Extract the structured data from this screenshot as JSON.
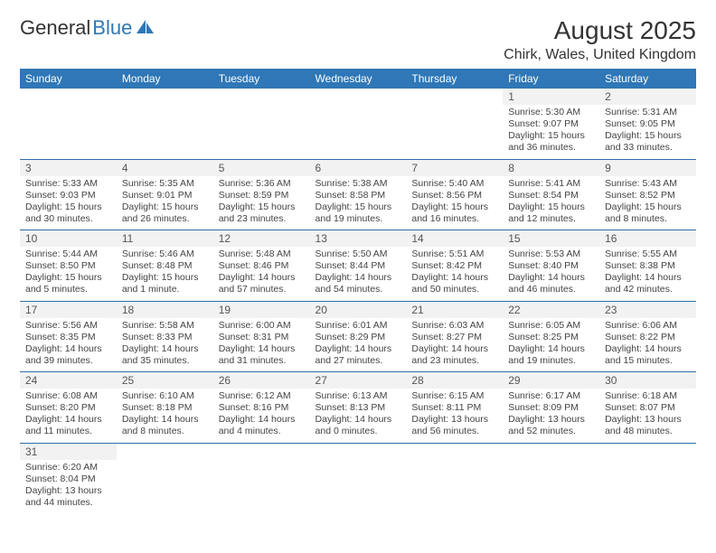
{
  "brand": {
    "part1": "General",
    "part2": "Blue"
  },
  "title": "August 2025",
  "location": "Chirk, Wales, United Kingdom",
  "header_bg": "#2f77b6",
  "days": [
    "Sunday",
    "Monday",
    "Tuesday",
    "Wednesday",
    "Thursday",
    "Friday",
    "Saturday"
  ],
  "cells": [
    {
      "n": "",
      "sr": "",
      "ss": "",
      "dl": ""
    },
    {
      "n": "",
      "sr": "",
      "ss": "",
      "dl": ""
    },
    {
      "n": "",
      "sr": "",
      "ss": "",
      "dl": ""
    },
    {
      "n": "",
      "sr": "",
      "ss": "",
      "dl": ""
    },
    {
      "n": "",
      "sr": "",
      "ss": "",
      "dl": ""
    },
    {
      "n": "1",
      "sr": "Sunrise: 5:30 AM",
      "ss": "Sunset: 9:07 PM",
      "dl": "Daylight: 15 hours and 36 minutes."
    },
    {
      "n": "2",
      "sr": "Sunrise: 5:31 AM",
      "ss": "Sunset: 9:05 PM",
      "dl": "Daylight: 15 hours and 33 minutes."
    },
    {
      "n": "3",
      "sr": "Sunrise: 5:33 AM",
      "ss": "Sunset: 9:03 PM",
      "dl": "Daylight: 15 hours and 30 minutes."
    },
    {
      "n": "4",
      "sr": "Sunrise: 5:35 AM",
      "ss": "Sunset: 9:01 PM",
      "dl": "Daylight: 15 hours and 26 minutes."
    },
    {
      "n": "5",
      "sr": "Sunrise: 5:36 AM",
      "ss": "Sunset: 8:59 PM",
      "dl": "Daylight: 15 hours and 23 minutes."
    },
    {
      "n": "6",
      "sr": "Sunrise: 5:38 AM",
      "ss": "Sunset: 8:58 PM",
      "dl": "Daylight: 15 hours and 19 minutes."
    },
    {
      "n": "7",
      "sr": "Sunrise: 5:40 AM",
      "ss": "Sunset: 8:56 PM",
      "dl": "Daylight: 15 hours and 16 minutes."
    },
    {
      "n": "8",
      "sr": "Sunrise: 5:41 AM",
      "ss": "Sunset: 8:54 PM",
      "dl": "Daylight: 15 hours and 12 minutes."
    },
    {
      "n": "9",
      "sr": "Sunrise: 5:43 AM",
      "ss": "Sunset: 8:52 PM",
      "dl": "Daylight: 15 hours and 8 minutes."
    },
    {
      "n": "10",
      "sr": "Sunrise: 5:44 AM",
      "ss": "Sunset: 8:50 PM",
      "dl": "Daylight: 15 hours and 5 minutes."
    },
    {
      "n": "11",
      "sr": "Sunrise: 5:46 AM",
      "ss": "Sunset: 8:48 PM",
      "dl": "Daylight: 15 hours and 1 minute."
    },
    {
      "n": "12",
      "sr": "Sunrise: 5:48 AM",
      "ss": "Sunset: 8:46 PM",
      "dl": "Daylight: 14 hours and 57 minutes."
    },
    {
      "n": "13",
      "sr": "Sunrise: 5:50 AM",
      "ss": "Sunset: 8:44 PM",
      "dl": "Daylight: 14 hours and 54 minutes."
    },
    {
      "n": "14",
      "sr": "Sunrise: 5:51 AM",
      "ss": "Sunset: 8:42 PM",
      "dl": "Daylight: 14 hours and 50 minutes."
    },
    {
      "n": "15",
      "sr": "Sunrise: 5:53 AM",
      "ss": "Sunset: 8:40 PM",
      "dl": "Daylight: 14 hours and 46 minutes."
    },
    {
      "n": "16",
      "sr": "Sunrise: 5:55 AM",
      "ss": "Sunset: 8:38 PM",
      "dl": "Daylight: 14 hours and 42 minutes."
    },
    {
      "n": "17",
      "sr": "Sunrise: 5:56 AM",
      "ss": "Sunset: 8:35 PM",
      "dl": "Daylight: 14 hours and 39 minutes."
    },
    {
      "n": "18",
      "sr": "Sunrise: 5:58 AM",
      "ss": "Sunset: 8:33 PM",
      "dl": "Daylight: 14 hours and 35 minutes."
    },
    {
      "n": "19",
      "sr": "Sunrise: 6:00 AM",
      "ss": "Sunset: 8:31 PM",
      "dl": "Daylight: 14 hours and 31 minutes."
    },
    {
      "n": "20",
      "sr": "Sunrise: 6:01 AM",
      "ss": "Sunset: 8:29 PM",
      "dl": "Daylight: 14 hours and 27 minutes."
    },
    {
      "n": "21",
      "sr": "Sunrise: 6:03 AM",
      "ss": "Sunset: 8:27 PM",
      "dl": "Daylight: 14 hours and 23 minutes."
    },
    {
      "n": "22",
      "sr": "Sunrise: 6:05 AM",
      "ss": "Sunset: 8:25 PM",
      "dl": "Daylight: 14 hours and 19 minutes."
    },
    {
      "n": "23",
      "sr": "Sunrise: 6:06 AM",
      "ss": "Sunset: 8:22 PM",
      "dl": "Daylight: 14 hours and 15 minutes."
    },
    {
      "n": "24",
      "sr": "Sunrise: 6:08 AM",
      "ss": "Sunset: 8:20 PM",
      "dl": "Daylight: 14 hours and 11 minutes."
    },
    {
      "n": "25",
      "sr": "Sunrise: 6:10 AM",
      "ss": "Sunset: 8:18 PM",
      "dl": "Daylight: 14 hours and 8 minutes."
    },
    {
      "n": "26",
      "sr": "Sunrise: 6:12 AM",
      "ss": "Sunset: 8:16 PM",
      "dl": "Daylight: 14 hours and 4 minutes."
    },
    {
      "n": "27",
      "sr": "Sunrise: 6:13 AM",
      "ss": "Sunset: 8:13 PM",
      "dl": "Daylight: 14 hours and 0 minutes."
    },
    {
      "n": "28",
      "sr": "Sunrise: 6:15 AM",
      "ss": "Sunset: 8:11 PM",
      "dl": "Daylight: 13 hours and 56 minutes."
    },
    {
      "n": "29",
      "sr": "Sunrise: 6:17 AM",
      "ss": "Sunset: 8:09 PM",
      "dl": "Daylight: 13 hours and 52 minutes."
    },
    {
      "n": "30",
      "sr": "Sunrise: 6:18 AM",
      "ss": "Sunset: 8:07 PM",
      "dl": "Daylight: 13 hours and 48 minutes."
    },
    {
      "n": "31",
      "sr": "Sunrise: 6:20 AM",
      "ss": "Sunset: 8:04 PM",
      "dl": "Daylight: 13 hours and 44 minutes."
    },
    {
      "n": "",
      "sr": "",
      "ss": "",
      "dl": ""
    },
    {
      "n": "",
      "sr": "",
      "ss": "",
      "dl": ""
    },
    {
      "n": "",
      "sr": "",
      "ss": "",
      "dl": ""
    },
    {
      "n": "",
      "sr": "",
      "ss": "",
      "dl": ""
    },
    {
      "n": "",
      "sr": "",
      "ss": "",
      "dl": ""
    },
    {
      "n": "",
      "sr": "",
      "ss": "",
      "dl": ""
    }
  ]
}
